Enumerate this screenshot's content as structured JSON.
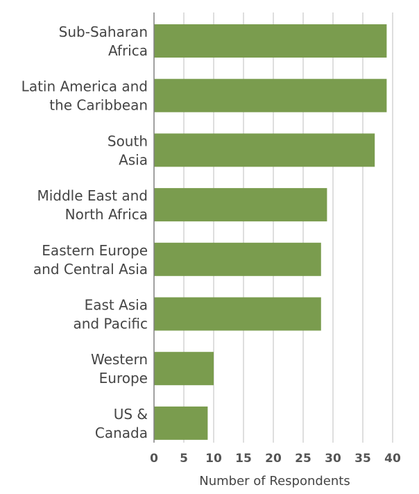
{
  "chart_data": {
    "type": "bar",
    "orientation": "horizontal",
    "categories": [
      [
        "Sub-Saharan",
        "Africa"
      ],
      [
        "Latin America and",
        "the Caribbean"
      ],
      [
        "South",
        "Asia"
      ],
      [
        "Middle East and",
        "North Africa"
      ],
      [
        "Eastern Europe",
        "and Central Asia"
      ],
      [
        "East Asia",
        "and Pacific"
      ],
      [
        "Western",
        "Europe"
      ],
      [
        "US &",
        "Canada"
      ]
    ],
    "values": [
      39,
      39,
      37,
      29,
      28,
      28,
      10,
      9
    ],
    "xlabel": "Number of Respondents",
    "ylabel": "",
    "xlim": [
      0,
      40
    ],
    "xticks": [
      "0",
      "5",
      "10",
      "15",
      "20",
      "25",
      "30",
      "35",
      "40"
    ],
    "grid": "vertical",
    "colors": {
      "bar": "#7a9c4e",
      "grid": "#c8c8c8",
      "axis": "#808080"
    }
  }
}
